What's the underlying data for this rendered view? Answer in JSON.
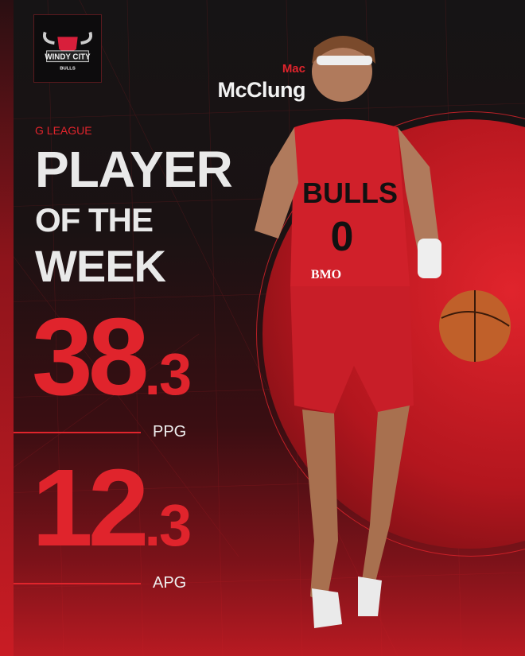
{
  "logo": {
    "text_line1": "WINDY CITY",
    "text_line2": "BULLS"
  },
  "player": {
    "first_name": "Mac",
    "last_name": "McClung",
    "jersey_team": "BULLS",
    "jersey_number": "0",
    "sponsor": "BMO"
  },
  "header": {
    "league": "G LEAGUE",
    "title_line1": "PLAYER",
    "title_line2": "OF THE",
    "title_line3": "WEEK"
  },
  "stats": [
    {
      "whole": "38",
      "decimal": ".3",
      "label": "PPG"
    },
    {
      "whole": "12",
      "decimal": ".3",
      "label": "APG"
    }
  ],
  "colors": {
    "accent": "#e0242c",
    "background": "#141213",
    "text": "#e9e9e9"
  }
}
